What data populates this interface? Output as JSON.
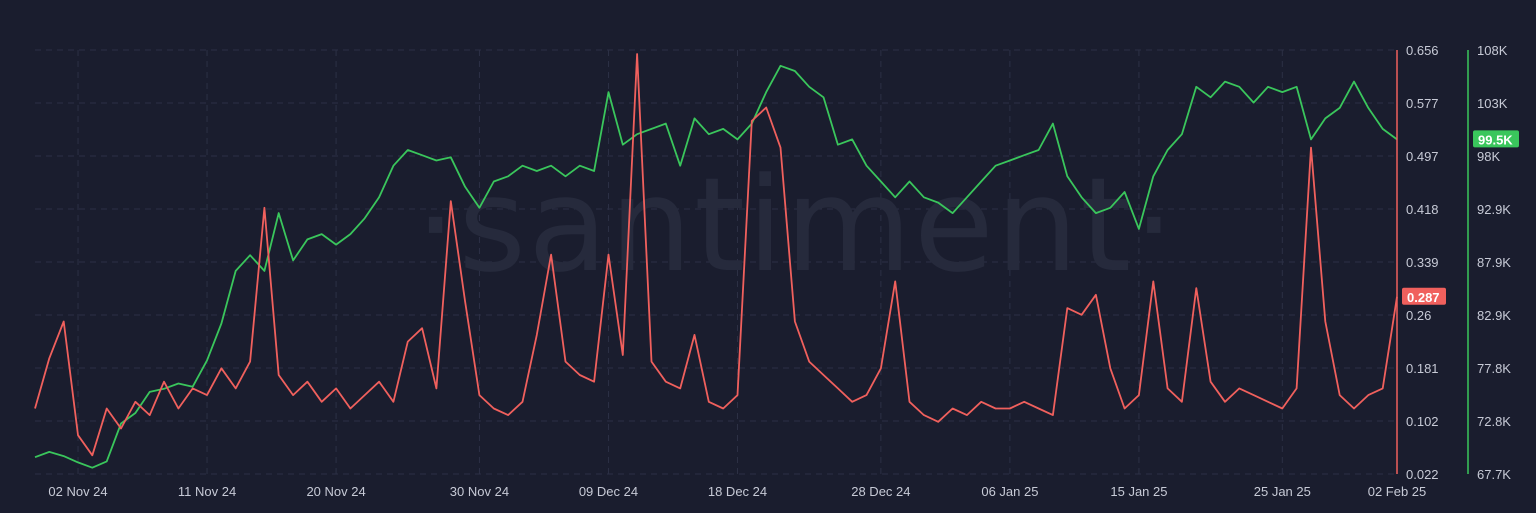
{
  "watermark": "·santiment·",
  "chart_data": {
    "type": "line",
    "title": "",
    "x": {
      "start": "2024-10-30",
      "end": "2025-02-02",
      "tick_labels": [
        "02 Nov 24",
        "11 Nov 24",
        "20 Nov 24",
        "30 Nov 24",
        "09 Dec 24",
        "18 Dec 24",
        "28 Dec 24",
        "06 Jan 25",
        "15 Jan 25",
        "25 Jan 25",
        "02 Feb 25"
      ],
      "tick_dates": [
        "2024-11-02",
        "2024-11-11",
        "2024-11-20",
        "2024-11-30",
        "2024-12-09",
        "2024-12-18",
        "2024-12-28",
        "2025-01-06",
        "2025-01-15",
        "2025-01-25",
        "2025-02-02"
      ]
    },
    "axes": {
      "left_right": {
        "range": [
          0.022,
          0.656
        ],
        "tick_labels": [
          "0.656",
          "0.577",
          "0.497",
          "0.418",
          "0.339",
          "0.26",
          "0.181",
          "0.102",
          "0.022"
        ],
        "color": "#f0605d"
      },
      "far_right": {
        "range": [
          67700,
          108000
        ],
        "tick_labels": [
          "108K",
          "103K",
          "98K",
          "92.9K",
          "87.9K",
          "82.9K",
          "77.8K",
          "72.8K",
          "67.7K"
        ],
        "color": "#3ac65c"
      }
    },
    "grid": true,
    "series": [
      {
        "axis": "far_right",
        "color": "#3ac65c",
        "last_label": "99.5K",
        "values": [
          [
            "2024-10-30",
            69300
          ],
          [
            "2024-10-31",
            69800
          ],
          [
            "2024-11-01",
            69400
          ],
          [
            "2024-11-02",
            68800
          ],
          [
            "2024-11-03",
            68300
          ],
          [
            "2024-11-04",
            68900
          ],
          [
            "2024-11-05",
            72500
          ],
          [
            "2024-11-06",
            73500
          ],
          [
            "2024-11-07",
            75500
          ],
          [
            "2024-11-08",
            75800
          ],
          [
            "2024-11-09",
            76300
          ],
          [
            "2024-11-10",
            76000
          ],
          [
            "2024-11-11",
            78500
          ],
          [
            "2024-11-12",
            82000
          ],
          [
            "2024-11-13",
            87000
          ],
          [
            "2024-11-14",
            88500
          ],
          [
            "2024-11-15",
            87000
          ],
          [
            "2024-11-16",
            92500
          ],
          [
            "2024-11-17",
            88000
          ],
          [
            "2024-11-18",
            90000
          ],
          [
            "2024-11-19",
            90500
          ],
          [
            "2024-11-20",
            89500
          ],
          [
            "2024-11-21",
            90500
          ],
          [
            "2024-11-22",
            92000
          ],
          [
            "2024-11-23",
            94000
          ],
          [
            "2024-11-24",
            97000
          ],
          [
            "2024-11-25",
            98500
          ],
          [
            "2024-11-26",
            98000
          ],
          [
            "2024-11-27",
            97500
          ],
          [
            "2024-11-28",
            97800
          ],
          [
            "2024-11-29",
            95000
          ],
          [
            "2024-11-30",
            93000
          ],
          [
            "2024-12-01",
            95500
          ],
          [
            "2024-12-02",
            96000
          ],
          [
            "2024-12-03",
            97000
          ],
          [
            "2024-12-04",
            96500
          ],
          [
            "2024-12-05",
            97000
          ],
          [
            "2024-12-06",
            96000
          ],
          [
            "2024-12-07",
            97000
          ],
          [
            "2024-12-08",
            96500
          ],
          [
            "2024-12-09",
            104000
          ],
          [
            "2024-12-10",
            99000
          ],
          [
            "2024-12-11",
            100000
          ],
          [
            "2024-12-12",
            100500
          ],
          [
            "2024-12-13",
            101000
          ],
          [
            "2024-12-14",
            97000
          ],
          [
            "2024-12-15",
            101500
          ],
          [
            "2024-12-16",
            100000
          ],
          [
            "2024-12-17",
            100500
          ],
          [
            "2024-12-18",
            99500
          ],
          [
            "2024-12-19",
            101000
          ],
          [
            "2024-12-20",
            104000
          ],
          [
            "2024-12-21",
            106500
          ],
          [
            "2024-12-22",
            106000
          ],
          [
            "2024-12-23",
            104500
          ],
          [
            "2024-12-24",
            103500
          ],
          [
            "2024-12-25",
            99000
          ],
          [
            "2024-12-26",
            99500
          ],
          [
            "2024-12-27",
            97000
          ],
          [
            "2024-12-28",
            95500
          ],
          [
            "2024-12-29",
            94000
          ],
          [
            "2024-12-30",
            95500
          ],
          [
            "2024-12-31",
            94000
          ],
          [
            "2025-01-01",
            93500
          ],
          [
            "2025-01-02",
            92500
          ],
          [
            "2025-01-03",
            94000
          ],
          [
            "2025-01-04",
            95500
          ],
          [
            "2025-01-05",
            97000
          ],
          [
            "2025-01-06",
            97500
          ],
          [
            "2025-01-07",
            98000
          ],
          [
            "2025-01-08",
            98500
          ],
          [
            "2025-01-09",
            101000
          ],
          [
            "2025-01-10",
            96000
          ],
          [
            "2025-01-11",
            94000
          ],
          [
            "2025-01-12",
            92500
          ],
          [
            "2025-01-13",
            93000
          ],
          [
            "2025-01-14",
            94500
          ],
          [
            "2025-01-15",
            91000
          ],
          [
            "2025-01-16",
            96000
          ],
          [
            "2025-01-17",
            98500
          ],
          [
            "2025-01-18",
            100000
          ],
          [
            "2025-01-19",
            104500
          ],
          [
            "2025-01-20",
            103500
          ],
          [
            "2025-01-21",
            105000
          ],
          [
            "2025-01-22",
            104500
          ],
          [
            "2025-01-23",
            103000
          ],
          [
            "2025-01-24",
            104500
          ],
          [
            "2025-01-25",
            104000
          ],
          [
            "2025-01-26",
            104500
          ],
          [
            "2025-01-27",
            99500
          ],
          [
            "2025-01-28",
            101500
          ],
          [
            "2025-01-29",
            102500
          ],
          [
            "2025-01-30",
            105000
          ],
          [
            "2025-01-31",
            102500
          ],
          [
            "2025-02-01",
            100500
          ],
          [
            "2025-02-02",
            99500
          ]
        ]
      },
      {
        "axis": "left_right",
        "color": "#f0605d",
        "last_label": "0.287",
        "values": [
          [
            "2024-10-30",
            0.12
          ],
          [
            "2024-10-31",
            0.195
          ],
          [
            "2024-11-01",
            0.25
          ],
          [
            "2024-11-02",
            0.08
          ],
          [
            "2024-11-03",
            0.05
          ],
          [
            "2024-11-04",
            0.12
          ],
          [
            "2024-11-05",
            0.09
          ],
          [
            "2024-11-06",
            0.13
          ],
          [
            "2024-11-07",
            0.11
          ],
          [
            "2024-11-08",
            0.16
          ],
          [
            "2024-11-09",
            0.12
          ],
          [
            "2024-11-10",
            0.15
          ],
          [
            "2024-11-11",
            0.14
          ],
          [
            "2024-11-12",
            0.18
          ],
          [
            "2024-11-13",
            0.15
          ],
          [
            "2024-11-14",
            0.19
          ],
          [
            "2024-11-15",
            0.42
          ],
          [
            "2024-11-16",
            0.17
          ],
          [
            "2024-11-17",
            0.14
          ],
          [
            "2024-11-18",
            0.16
          ],
          [
            "2024-11-19",
            0.13
          ],
          [
            "2024-11-20",
            0.15
          ],
          [
            "2024-11-21",
            0.12
          ],
          [
            "2024-11-22",
            0.14
          ],
          [
            "2024-11-23",
            0.16
          ],
          [
            "2024-11-24",
            0.13
          ],
          [
            "2024-11-25",
            0.22
          ],
          [
            "2024-11-26",
            0.24
          ],
          [
            "2024-11-27",
            0.15
          ],
          [
            "2024-11-28",
            0.43
          ],
          [
            "2024-11-29",
            0.28
          ],
          [
            "2024-11-30",
            0.14
          ],
          [
            "2024-12-01",
            0.12
          ],
          [
            "2024-12-02",
            0.11
          ],
          [
            "2024-12-03",
            0.13
          ],
          [
            "2024-12-04",
            0.23
          ],
          [
            "2024-12-05",
            0.35
          ],
          [
            "2024-12-06",
            0.19
          ],
          [
            "2024-12-07",
            0.17
          ],
          [
            "2024-12-08",
            0.16
          ],
          [
            "2024-12-09",
            0.35
          ],
          [
            "2024-12-10",
            0.2
          ],
          [
            "2024-12-11",
            0.65
          ],
          [
            "2024-12-12",
            0.19
          ],
          [
            "2024-12-13",
            0.16
          ],
          [
            "2024-12-14",
            0.15
          ],
          [
            "2024-12-15",
            0.23
          ],
          [
            "2024-12-16",
            0.13
          ],
          [
            "2024-12-17",
            0.12
          ],
          [
            "2024-12-18",
            0.14
          ],
          [
            "2024-12-19",
            0.55
          ],
          [
            "2024-12-20",
            0.57
          ],
          [
            "2024-12-21",
            0.51
          ],
          [
            "2024-12-22",
            0.25
          ],
          [
            "2024-12-23",
            0.19
          ],
          [
            "2024-12-24",
            0.17
          ],
          [
            "2024-12-25",
            0.15
          ],
          [
            "2024-12-26",
            0.13
          ],
          [
            "2024-12-27",
            0.14
          ],
          [
            "2024-12-28",
            0.18
          ],
          [
            "2024-12-29",
            0.31
          ],
          [
            "2024-12-30",
            0.13
          ],
          [
            "2024-12-31",
            0.11
          ],
          [
            "2025-01-01",
            0.1
          ],
          [
            "2025-01-02",
            0.12
          ],
          [
            "2025-01-03",
            0.11
          ],
          [
            "2025-01-04",
            0.13
          ],
          [
            "2025-01-05",
            0.12
          ],
          [
            "2025-01-06",
            0.12
          ],
          [
            "2025-01-07",
            0.13
          ],
          [
            "2025-01-08",
            0.12
          ],
          [
            "2025-01-09",
            0.11
          ],
          [
            "2025-01-10",
            0.27
          ],
          [
            "2025-01-11",
            0.26
          ],
          [
            "2025-01-12",
            0.29
          ],
          [
            "2025-01-13",
            0.18
          ],
          [
            "2025-01-14",
            0.12
          ],
          [
            "2025-01-15",
            0.14
          ],
          [
            "2025-01-16",
            0.31
          ],
          [
            "2025-01-17",
            0.15
          ],
          [
            "2025-01-18",
            0.13
          ],
          [
            "2025-01-19",
            0.3
          ],
          [
            "2025-01-20",
            0.16
          ],
          [
            "2025-01-21",
            0.13
          ],
          [
            "2025-01-22",
            0.15
          ],
          [
            "2025-01-23",
            0.14
          ],
          [
            "2025-01-24",
            0.13
          ],
          [
            "2025-01-25",
            0.12
          ],
          [
            "2025-01-26",
            0.15
          ],
          [
            "2025-01-27",
            0.51
          ],
          [
            "2025-01-28",
            0.25
          ],
          [
            "2025-01-29",
            0.14
          ],
          [
            "2025-01-30",
            0.12
          ],
          [
            "2025-01-31",
            0.14
          ],
          [
            "2025-02-01",
            0.15
          ],
          [
            "2025-02-02",
            0.287
          ]
        ]
      }
    ]
  }
}
